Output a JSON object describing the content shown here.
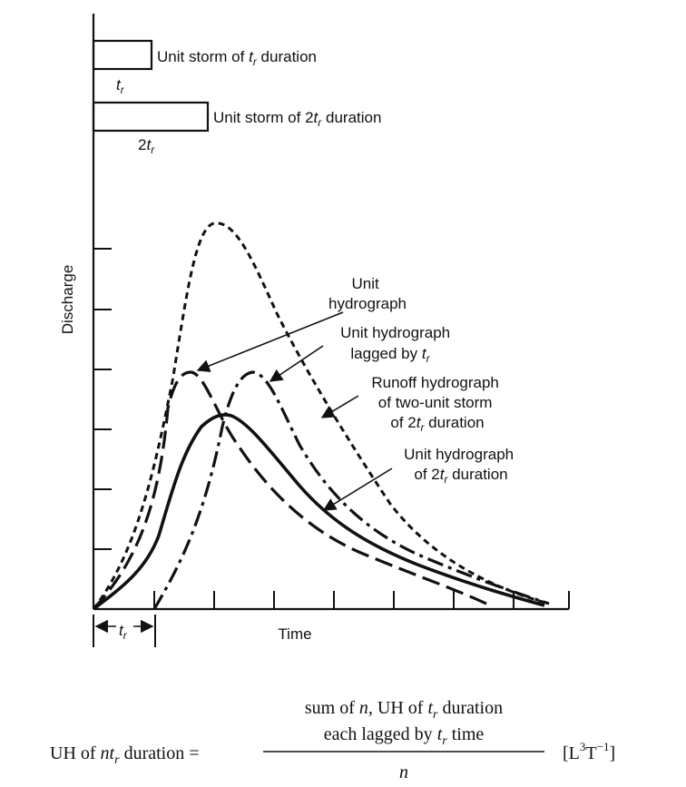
{
  "axes": {
    "y_label": "Discharge",
    "x_label": "Time"
  },
  "storms": {
    "tr_label": "Unit storm of ",
    "tr_symbol": "t",
    "tr_sub": "r",
    "tr_suffix": " duration",
    "tr_width_label_t": "t",
    "tr_width_label_sub": "r",
    "two_tr_label": "Unit storm of 2",
    "two_tr_symbol": "t",
    "two_tr_sub": "r",
    "two_tr_suffix": " duration",
    "two_tr_width_prefix": "2",
    "two_tr_width_t": "t",
    "two_tr_width_sub": "r"
  },
  "annotations": {
    "unit_hydrograph_line1": "Unit",
    "unit_hydrograph_line2": "hydrograph",
    "lagged_line1": "Unit hydrograph",
    "lagged_line2": "lagged by ",
    "lagged_t": "t",
    "lagged_sub": "r",
    "runoff_line1": "Runoff hydrograph",
    "runoff_line2": "of two-unit storm",
    "runoff_line3_prefix": "of 2",
    "runoff_line3_t": "t",
    "runoff_line3_sub": "r",
    "runoff_line3_suffix": " duration",
    "uh2tr_line1": "Unit hydrograph",
    "uh2tr_line2_prefix": "of 2",
    "uh2tr_line2_t": "t",
    "uh2tr_line2_sub": "r",
    "uh2tr_line2_suffix": " duration"
  },
  "tr_marker": {
    "t": "t",
    "sub": "r"
  },
  "equation": {
    "lhs_prefix": "UH of ",
    "lhs_n": "n",
    "lhs_t": "t",
    "lhs_sub": "r",
    "lhs_suffix": " duration =",
    "num_line1_prefix": "sum of ",
    "num_line1_n": "n",
    "num_line1_mid": ", UH of ",
    "num_line1_t": "t",
    "num_line1_sub": "r",
    "num_line1_suffix": "  duration",
    "num_line2_prefix": "each lagged by ",
    "num_line2_t": "t",
    "num_line2_sub": "r",
    "num_line2_suffix": "  time",
    "denominator": "n",
    "units_open": "[L",
    "units_exp1": "3",
    "units_mid": "T",
    "units_exp2": "−1",
    "units_close": "]"
  },
  "colors": {
    "ink": "#111111",
    "background": "#ffffff"
  }
}
